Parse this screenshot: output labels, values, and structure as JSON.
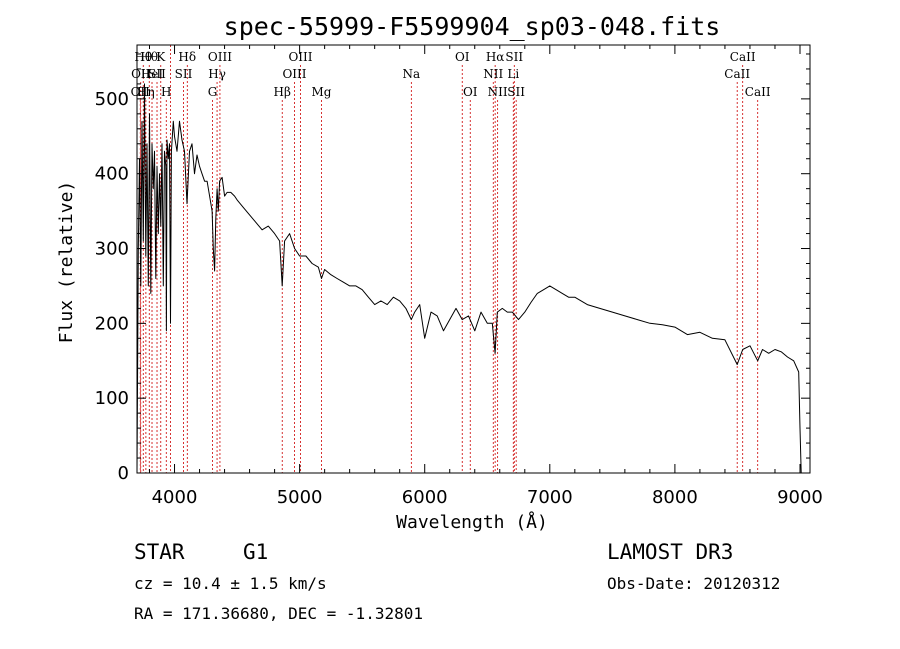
{
  "chart_data": {
    "type": "line",
    "title": "spec-55999-F5599904_sp03-048.fits",
    "xlabel": "Wavelength (Å)",
    "ylabel": "Flux (relative)",
    "xlim": [
      3700,
      9080
    ],
    "ylim": [
      0,
      572
    ],
    "xticks": [
      4000,
      5000,
      6000,
      7000,
      8000,
      9000
    ],
    "yticks": [
      0,
      100,
      200,
      300,
      400,
      500
    ],
    "series": [
      {
        "name": "flux",
        "x": [
          3700,
          3710,
          3720,
          3730,
          3740,
          3750,
          3760,
          3770,
          3780,
          3790,
          3800,
          3810,
          3820,
          3830,
          3840,
          3850,
          3860,
          3870,
          3880,
          3890,
          3900,
          3910,
          3920,
          3930,
          3935,
          3940,
          3950,
          3960,
          3968,
          3975,
          3990,
          4000,
          4020,
          4040,
          4060,
          4080,
          4100,
          4120,
          4140,
          4160,
          4180,
          4200,
          4220,
          4240,
          4260,
          4280,
          4300,
          4310,
          4320,
          4330,
          4340,
          4350,
          4360,
          4380,
          4400,
          4420,
          4450,
          4480,
          4500,
          4550,
          4600,
          4650,
          4700,
          4750,
          4800,
          4840,
          4861,
          4880,
          4920,
          4960,
          5000,
          5050,
          5100,
          5150,
          5175,
          5200,
          5250,
          5300,
          5350,
          5400,
          5450,
          5500,
          5550,
          5600,
          5650,
          5700,
          5750,
          5800,
          5850,
          5893,
          5920,
          5960,
          6000,
          6050,
          6100,
          6150,
          6200,
          6250,
          6300,
          6350,
          6400,
          6450,
          6500,
          6540,
          6563,
          6580,
          6620,
          6660,
          6700,
          6750,
          6800,
          6850,
          6900,
          6950,
          7000,
          7050,
          7100,
          7150,
          7200,
          7300,
          7400,
          7500,
          7600,
          7700,
          7800,
          7900,
          8000,
          8100,
          8200,
          8300,
          8400,
          8498,
          8542,
          8600,
          8662,
          8700,
          8750,
          8800,
          8850,
          8900,
          8950,
          8990,
          9000,
          9010
        ],
        "values": [
          0,
          300,
          420,
          250,
          470,
          310,
          520,
          290,
          440,
          250,
          480,
          240,
          440,
          380,
          430,
          260,
          410,
          320,
          400,
          330,
          440,
          250,
          430,
          410,
          190,
          445,
          420,
          440,
          200,
          430,
          470,
          450,
          430,
          470,
          445,
          430,
          360,
          430,
          440,
          400,
          425,
          410,
          400,
          390,
          390,
          370,
          350,
          300,
          270,
          340,
          380,
          350,
          390,
          395,
          370,
          375,
          375,
          370,
          365,
          355,
          345,
          335,
          325,
          330,
          320,
          310,
          250,
          310,
          320,
          300,
          290,
          290,
          280,
          275,
          260,
          272,
          265,
          260,
          255,
          250,
          250,
          245,
          235,
          225,
          230,
          225,
          235,
          230,
          220,
          205,
          215,
          225,
          180,
          215,
          210,
          190,
          205,
          220,
          205,
          210,
          190,
          215,
          200,
          200,
          160,
          215,
          220,
          215,
          215,
          205,
          215,
          228,
          240,
          245,
          250,
          245,
          240,
          235,
          235,
          225,
          220,
          215,
          210,
          205,
          200,
          198,
          195,
          185,
          188,
          180,
          178,
          145,
          165,
          170,
          150,
          165,
          160,
          165,
          162,
          155,
          150,
          135,
          60,
          0
        ]
      }
    ],
    "line_markers": [
      {
        "wave": 3726,
        "label": "OII",
        "row": 3
      },
      {
        "wave": 3730,
        "label": "OII",
        "row": 2
      },
      {
        "wave": 3750,
        "label": "Hθ",
        "row": 1
      },
      {
        "wave": 3771,
        "label": "Hη",
        "row": 3
      },
      {
        "wave": 3798,
        "label": "Hθ",
        "row": 1
      },
      {
        "wave": 3820,
        "label": "HeI",
        "row": 2
      },
      {
        "wave": 3860,
        "label": "SII",
        "row": 2
      },
      {
        "wave": 3890,
        "label": "K",
        "row": 1
      },
      {
        "wave": 3934,
        "label": "H",
        "row": 3
      },
      {
        "wave": 3968,
        "label": "",
        "row": 0
      },
      {
        "wave": 4072,
        "label": "SII",
        "row": 2
      },
      {
        "wave": 4102,
        "label": "Hδ",
        "row": 1
      },
      {
        "wave": 4304,
        "label": "G",
        "row": 3
      },
      {
        "wave": 4340,
        "label": "Hγ",
        "row": 2
      },
      {
        "wave": 4363,
        "label": "OIII",
        "row": 1
      },
      {
        "wave": 4861,
        "label": "Hβ",
        "row": 3
      },
      {
        "wave": 4959,
        "label": "OIII",
        "row": 2
      },
      {
        "wave": 5007,
        "label": "OIII",
        "row": 1
      },
      {
        "wave": 5175,
        "label": "Mg",
        "row": 3
      },
      {
        "wave": 5893,
        "label": "Na",
        "row": 2
      },
      {
        "wave": 6300,
        "label": "OI",
        "row": 1
      },
      {
        "wave": 6364,
        "label": "OI",
        "row": 3
      },
      {
        "wave": 6548,
        "label": "NII",
        "row": 2
      },
      {
        "wave": 6563,
        "label": "Hα",
        "row": 1
      },
      {
        "wave": 6583,
        "label": "NII",
        "row": 3
      },
      {
        "wave": 6708,
        "label": "Li",
        "row": 2
      },
      {
        "wave": 6716,
        "label": "SII",
        "row": 1
      },
      {
        "wave": 6731,
        "label": "SII",
        "row": 3
      },
      {
        "wave": 8498,
        "label": "CaII",
        "row": 2
      },
      {
        "wave": 8542,
        "label": "CaII",
        "row": 1
      },
      {
        "wave": 8662,
        "label": "CaII",
        "row": 3
      }
    ],
    "colors": {
      "spectrum": "#000000",
      "markers": "#cc0000"
    }
  },
  "info": {
    "class": "STAR",
    "subclass": "G1",
    "survey": "LAMOST DR3",
    "cz": "cz = 10.4 ± 1.5 km/s",
    "obs_date": "Obs-Date: 20120312",
    "coords": "RA = 171.36680, DEC =  -1.32801"
  }
}
